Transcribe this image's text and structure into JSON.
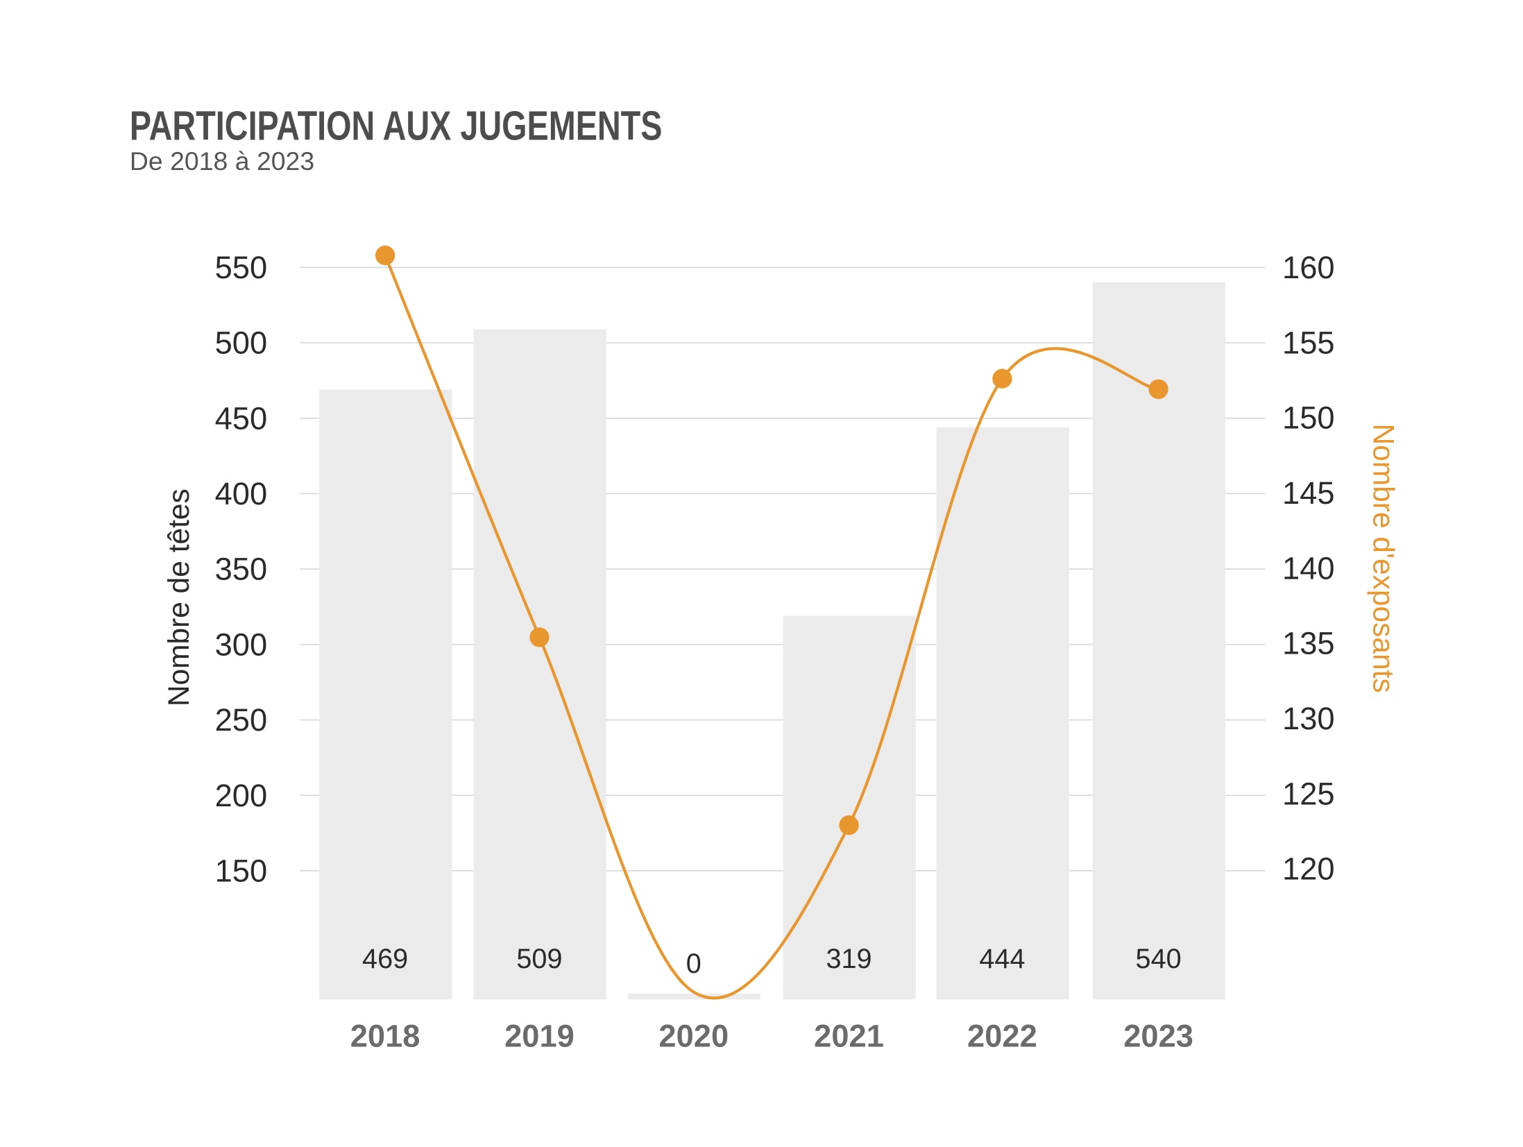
{
  "chart_data": {
    "type": "bar+line",
    "title": "PARTICIPATION AUX JUGEMENTS",
    "subtitle": "De 2018 à 2023",
    "categories": [
      "2018",
      "2019",
      "2020",
      "2021",
      "2022",
      "2023"
    ],
    "bars": {
      "axis": "left",
      "values": [
        469,
        509,
        0,
        319,
        444,
        540
      ],
      "labels": [
        "469",
        "509",
        "0",
        "319",
        "444",
        "540"
      ],
      "color": "#ebebeb"
    },
    "line": {
      "axis": "right",
      "values": [
        160.8,
        135.4,
        111.8,
        122.9,
        152.6,
        151.9
      ],
      "markers_shown": [
        true,
        true,
        false,
        true,
        true,
        true
      ],
      "smooth": true,
      "color": "#e8962e"
    },
    "ylabel": "Nombre de têtes",
    "y2label": "Nombre d'exposants",
    "y_ticks": [
      "150",
      "200",
      "250",
      "300",
      "350",
      "400",
      "450",
      "500",
      "550"
    ],
    "y2_ticks": [
      "120",
      "125",
      "130",
      "135",
      "140",
      "145",
      "150",
      "155",
      "160"
    ],
    "ylim": [
      65,
      550
    ],
    "y2lim": [
      111.5,
      160
    ],
    "grid": true,
    "legend": "none"
  }
}
